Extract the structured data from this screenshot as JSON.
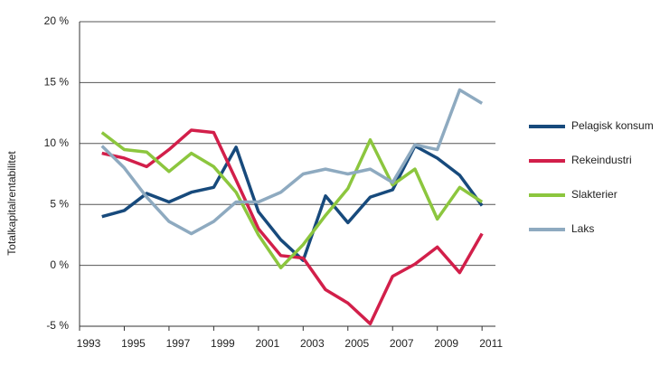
{
  "chart_data": {
    "type": "line",
    "y_label": "Totalkapitalrentabilitet",
    "x": [
      1994,
      1995,
      1996,
      1997,
      1998,
      1999,
      2000,
      2001,
      2002,
      2003,
      2004,
      2005,
      2006,
      2007,
      2008,
      2009,
      2010,
      2011
    ],
    "xlim": [
      1993,
      2011.6
    ],
    "xticks": [
      1993,
      1995,
      1997,
      1999,
      2001,
      2003,
      2005,
      2007,
      2009,
      2011
    ],
    "ylim": [
      -5,
      20
    ],
    "yticks": [
      {
        "value": -5,
        "label": "-5 %"
      },
      {
        "value": 0,
        "label": "0 %"
      },
      {
        "value": 5,
        "label": "5 %"
      },
      {
        "value": 10,
        "label": "10 %"
      },
      {
        "value": 15,
        "label": "15 %"
      },
      {
        "value": 20,
        "label": "20 %"
      }
    ],
    "grid": true,
    "series": [
      {
        "name": "Pelagisk konsum",
        "color": "#174a7c",
        "values": [
          4.0,
          4.5,
          5.9,
          5.2,
          6.0,
          6.4,
          9.7,
          4.4,
          2.1,
          0.4,
          5.7,
          3.5,
          5.6,
          6.2,
          9.8,
          8.8,
          7.4,
          4.9
        ]
      },
      {
        "name": "Rekeindustri",
        "color": "#d21f4a",
        "values": [
          9.2,
          8.8,
          8.1,
          9.5,
          11.1,
          10.9,
          7.0,
          3.0,
          0.8,
          0.6,
          -2.0,
          -3.1,
          -4.8,
          -0.9,
          0.1,
          1.5,
          -0.6,
          2.6
        ]
      },
      {
        "name": "Slakterier",
        "color": "#8cc63e",
        "values": [
          10.9,
          9.5,
          9.3,
          7.7,
          9.2,
          8.1,
          6.0,
          2.5,
          -0.2,
          1.7,
          4.1,
          6.3,
          10.3,
          6.6,
          7.9,
          3.8,
          6.4,
          5.2
        ]
      },
      {
        "name": "Laks",
        "color": "#8eaac0",
        "values": [
          9.8,
          8.0,
          5.6,
          3.6,
          2.6,
          3.6,
          5.2,
          5.2,
          6.0,
          7.5,
          7.9,
          7.5,
          7.9,
          6.8,
          9.9,
          9.5,
          14.4,
          13.3
        ]
      }
    ]
  }
}
